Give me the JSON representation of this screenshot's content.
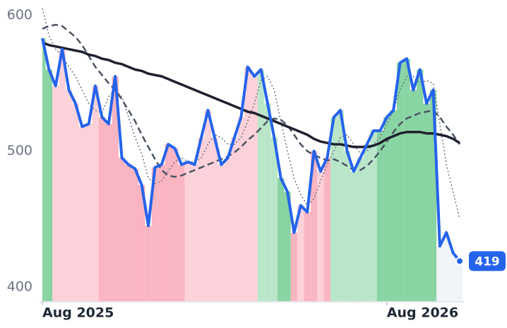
{
  "chart_data": {
    "type": "line",
    "categories": [
      "Aug 2025",
      null,
      null,
      null,
      null,
      null,
      null,
      null,
      null,
      null,
      null,
      null,
      null,
      null,
      null,
      null,
      null,
      null,
      null,
      null,
      null,
      null,
      null,
      null,
      null,
      null,
      null,
      null,
      null,
      null,
      null,
      null,
      null,
      null,
      null,
      null,
      null,
      null,
      null,
      null,
      null,
      null,
      null,
      null,
      null,
      null,
      null,
      null,
      null,
      null,
      null,
      null,
      "Aug 2026",
      null,
      null,
      null,
      null,
      null,
      null,
      null,
      null,
      null,
      null,
      null
    ],
    "series": [
      {
        "color": "#2563eb",
        "values": [
          583,
          560,
          548,
          575,
          545,
          535,
          518,
          520,
          548,
          525,
          520,
          555,
          495,
          490,
          487,
          475,
          445,
          488,
          490,
          505,
          502,
          490,
          492,
          490,
          510,
          530,
          510,
          490,
          495,
          510,
          525,
          562,
          555,
          560,
          535,
          510,
          480,
          470,
          440,
          460,
          455,
          500,
          485,
          495,
          525,
          530,
          500,
          485,
          495,
          505,
          515,
          515,
          525,
          530,
          565,
          568,
          545,
          560,
          535,
          545,
          430,
          440,
          425,
          419
        ]
      },
      {
        "color": "#1e2030",
        "values": [
          580,
          578,
          577,
          576,
          575,
          574,
          573,
          571,
          570,
          568,
          567,
          565,
          564,
          562,
          560,
          559,
          557,
          556,
          555,
          553,
          551,
          549,
          547,
          545,
          543,
          541,
          539,
          537,
          535,
          533,
          531,
          529,
          528,
          526,
          524,
          522,
          520,
          518,
          516,
          514,
          512,
          509,
          507,
          506,
          505,
          505,
          504,
          503,
          503,
          503,
          504,
          506,
          509,
          511,
          513,
          514,
          514,
          514,
          513,
          513,
          512,
          511,
          509,
          506
        ]
      },
      {
        "color": "#4b5563",
        "values": [
          590,
          592,
          593,
          592,
          588,
          584,
          578,
          570,
          562,
          556,
          550,
          545,
          538,
          530,
          522,
          512,
          503,
          494,
          486,
          482,
          481,
          482,
          484,
          486,
          488,
          490,
          492,
          494,
          496,
          499,
          503,
          508,
          512,
          517,
          522,
          524,
          523,
          519,
          512,
          505,
          500,
          497,
          495,
          493,
          494,
          492,
          489,
          486,
          486,
          489,
          494,
          500,
          507,
          514,
          520,
          524,
          526,
          528,
          529,
          530,
          525,
          518,
          512,
          505
        ]
      },
      {
        "color": "#6b7280",
        "values": [
          605,
          585,
          575,
          570,
          562,
          555,
          545,
          535,
          530,
          528,
          540,
          545,
          540,
          525,
          510,
          498,
          480,
          476,
          478,
          485,
          492,
          495,
          492,
          492,
          495,
          505,
          512,
          510,
          505,
          505,
          510,
          522,
          535,
          552,
          555,
          545,
          522,
          500,
          480,
          468,
          460,
          465,
          478,
          490,
          500,
          510,
          512,
          505,
          498,
          500,
          505,
          510,
          520,
          530,
          545,
          555,
          555,
          550,
          552,
          550,
          520,
          490,
          470,
          450
        ]
      }
    ],
    "area_colors": [
      "#6cc98c",
      "#6cc98c",
      "#fbc5cf",
      "#fbc5cf",
      "#fbc5cf",
      "#fbc5cf",
      "#fbc5cf",
      "#fbc5cf",
      "#fbc5cf",
      "#f7a3b2",
      "#f7a3b2",
      "#f7a3b2",
      "#f7a3b2",
      "#f7a3b2",
      "#f7a3b2",
      "#f7a3b2",
      "#f7a3b2",
      "#f7a3b2",
      "#f7a3b2",
      "#f7a3b2",
      "#f7a3b2",
      "#f7a3b2",
      "#fbc5cf",
      "#fbc5cf",
      "#fbc5cf",
      "#fbc5cf",
      "#fbc5cf",
      "#fbc5cf",
      "#fbc5cf",
      "#fbc5cf",
      "#fbc5cf",
      "#fbc5cf",
      "#fbc5cf",
      "#a8e0bb",
      "#a8e0bb",
      "#a8e0bb",
      "#6cc98c",
      "#6cc98c",
      "#f7a3b2",
      "#fbc5cf",
      "#f7a3b2",
      "#f7a3b2",
      "#fbc5cf",
      "#f7a3b2",
      "#a8e0bb",
      "#a8e0bb",
      "#a8e0bb",
      "#a8e0bb",
      "#a8e0bb",
      "#a8e0bb",
      "#a8e0bb",
      "#6cc98c",
      "#6cc98c",
      "#6cc98c",
      "#6cc98c",
      "#6cc98c",
      "#6cc98c",
      "#6cc98c",
      "#6cc98c",
      "#6cc98c",
      "#eef2f8",
      "#eef2f8",
      "#eef2f8",
      "#eef2f8"
    ],
    "ylim": [
      389,
      606
    ],
    "yticks": [
      400,
      500,
      600
    ]
  }
}
